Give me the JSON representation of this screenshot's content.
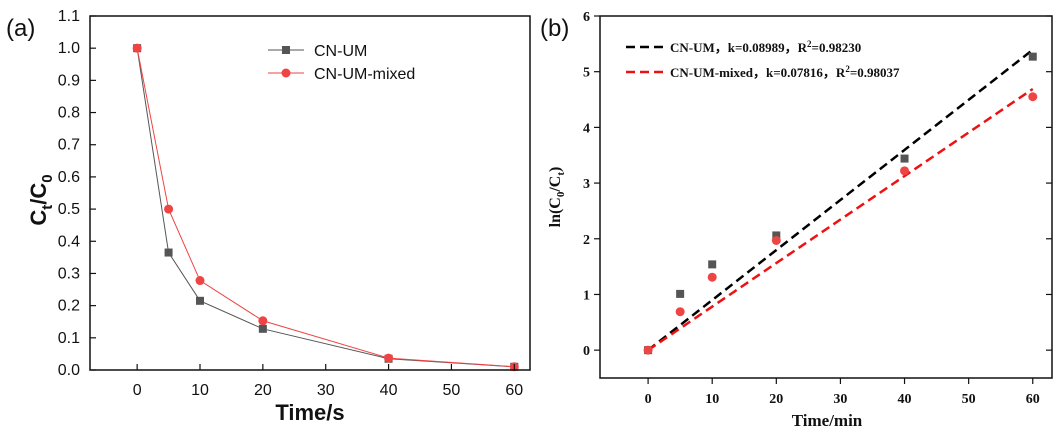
{
  "chart_data": [
    {
      "panel_label": "(a)",
      "type": "line",
      "xlabel": "Time/s",
      "ylabel": {
        "main": "C",
        "sub1": "t",
        "sep": "/C",
        "sub2": "0"
      },
      "xlim": [
        -7.5,
        62.5
      ],
      "ylim": [
        0.0,
        1.1
      ],
      "xticks": [
        0,
        10,
        20,
        30,
        40,
        50,
        60
      ],
      "xtick_labels": [
        "0",
        "10",
        "20",
        "30",
        "40",
        "50",
        "60"
      ],
      "yticks": [
        0.0,
        0.1,
        0.2,
        0.3,
        0.4,
        0.5,
        0.6,
        0.7,
        0.8,
        0.9,
        1.0,
        1.1
      ],
      "ytick_labels": [
        "0.0",
        "0.1",
        "0.2",
        "0.3",
        "0.4",
        "0.5",
        "0.6",
        "0.7",
        "0.8",
        "0.9",
        "1.0",
        "1.1"
      ],
      "legend_position": "top-right",
      "grid": false,
      "series": [
        {
          "name": "CN-UM",
          "color": "#555555",
          "marker": "square",
          "x": [
            0,
            5,
            10,
            20,
            40,
            60
          ],
          "y": [
            1.0,
            0.365,
            0.215,
            0.128,
            0.035,
            0.01
          ]
        },
        {
          "name": "CN-UM-mixed",
          "color": "#ee4444",
          "marker": "circle",
          "x": [
            0,
            5,
            10,
            20,
            40,
            60
          ],
          "y": [
            1.0,
            0.5,
            0.278,
            0.153,
            0.037,
            0.01
          ]
        }
      ]
    },
    {
      "panel_label": "(b)",
      "type": "scatter",
      "xlabel": "Time/min",
      "ylabel": {
        "main": "ln(C",
        "sub1": "0",
        "sep": "/C",
        "sub2": "t",
        "end": ")"
      },
      "xlim": [
        -7.5,
        63
      ],
      "ylim": [
        -0.5,
        6
      ],
      "xticks": [
        0,
        10,
        20,
        30,
        40,
        50,
        60
      ],
      "xtick_labels": [
        "0",
        "10",
        "20",
        "30",
        "40",
        "50",
        "60"
      ],
      "yticks": [
        0,
        1,
        2,
        3,
        4,
        5,
        6
      ],
      "ytick_labels": [
        "0",
        "1",
        "2",
        "3",
        "4",
        "5",
        "6"
      ],
      "legend_position": "top-left",
      "grid": false,
      "series": [
        {
          "name": "CN-UM",
          "color": "#555555",
          "marker": "square",
          "x": [
            0,
            5,
            10,
            20,
            40,
            60
          ],
          "y": [
            0.0,
            1.01,
            1.54,
            2.06,
            3.44,
            5.27
          ]
        },
        {
          "name": "CN-UM-mixed",
          "color": "#ee4444",
          "marker": "circle",
          "x": [
            0,
            5,
            10,
            20,
            40,
            60
          ],
          "y": [
            0.0,
            0.69,
            1.31,
            1.97,
            3.22,
            4.55
          ]
        }
      ],
      "fits": [
        {
          "series": "CN-UM",
          "color": "#000000",
          "k": 0.08989,
          "x": [
            0,
            60
          ],
          "legend": {
            "name": "CN-UM，k=0.08989，R",
            "sup": "2",
            "tail": "=0.98230"
          }
        },
        {
          "series": "CN-UM-mixed",
          "color": "#ee1111",
          "k": 0.07816,
          "x": [
            0,
            60
          ],
          "legend": {
            "name": "CN-UM-mixed，k=0.07816，R",
            "sup": "2",
            "tail": "=0.98037"
          }
        }
      ]
    }
  ]
}
